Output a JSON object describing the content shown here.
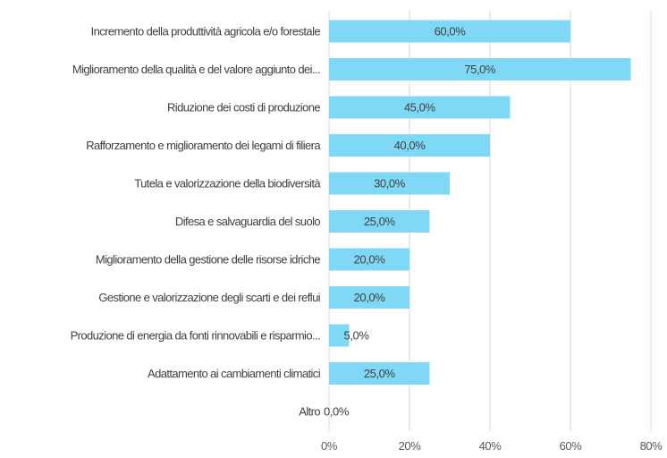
{
  "chart_data": {
    "type": "bar",
    "orientation": "horizontal",
    "categories": [
      "Incremento della produttività agricola e/o forestale",
      "Miglioramento della qualità e del valore aggiunto dei...",
      "Riduzione dei costi di produzione",
      "Rafforzamento e miglioramento dei legami di filiera",
      "Tutela e valorizzazione della biodiversità",
      "Difesa e salvaguardia del suolo",
      "Miglioramento della gestione delle risorse idriche",
      "Gestione e valorizzazione degli scarti e dei reflui",
      "Produzione di energia da fonti rinnovabili e risparmio...",
      "Adattamento ai cambiamenti climatici",
      "Altro"
    ],
    "values": [
      60,
      75,
      45,
      40,
      30,
      25,
      20,
      20,
      5,
      25,
      0
    ],
    "data_labels": [
      "60,0%",
      "75,0%",
      "45,0%",
      "40,0%",
      "30,0%",
      "25,0%",
      "20,0%",
      "20,0%",
      "5,0%",
      "25,0%",
      "0,0%"
    ],
    "xlim": [
      0,
      80
    ],
    "x_ticks": [
      0,
      20,
      40,
      60,
      80
    ],
    "x_tick_labels": [
      "0%",
      "20%",
      "40%",
      "60%",
      "80%"
    ],
    "grid": true,
    "bar_color": "#7fd8f5",
    "title": "",
    "xlabel": "",
    "ylabel": ""
  }
}
